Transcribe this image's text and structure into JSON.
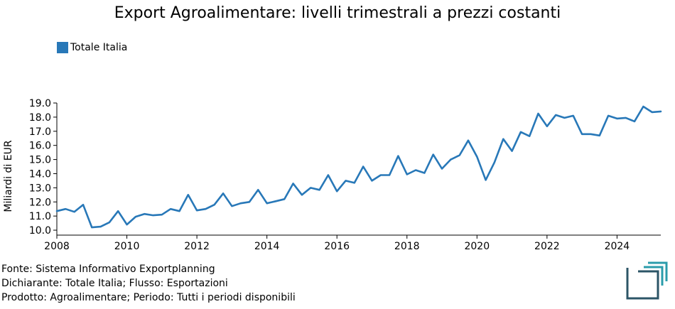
{
  "header": {
    "title": "Export Agroalimentare: livelli trimestrali a prezzi costanti"
  },
  "legend": {
    "label": "Totale Italia",
    "color": "#2878b8"
  },
  "footer": {
    "line1": "Fonte: Sistema Informativo Exportplanning",
    "line2": "Dichiarante: Totale Italia; Flusso: Esportazioni",
    "line3": "Prodotto: Agroalimentare; Periodo: Tutti i periodi disponibili"
  },
  "logo": {
    "icon": "exportplanning-logo-icon",
    "colors": [
      "#2b9cab",
      "#2c5567"
    ]
  },
  "chart_data": {
    "type": "line",
    "title": "Export Agroalimentare: livelli trimestrali a prezzi costanti",
    "xlabel": "",
    "ylabel": "Miliardi di EUR",
    "xlim": [
      2008,
      2025.25
    ],
    "ylim": [
      9.65,
      19.0
    ],
    "grid": false,
    "legend_position": "top-left",
    "x_ticks": [
      2008,
      2010,
      2012,
      2014,
      2016,
      2018,
      2020,
      2022,
      2024
    ],
    "x_tick_labels": [
      "2008",
      "2010",
      "2012",
      "2014",
      "2016",
      "2018",
      "2020",
      "2022",
      "2024"
    ],
    "y_ticks": [
      10.0,
      11.0,
      12.0,
      13.0,
      14.0,
      15.0,
      16.0,
      17.0,
      18.0,
      19.0
    ],
    "y_tick_labels": [
      "10.0",
      "11.0",
      "12.0",
      "13.0",
      "14.0",
      "15.0",
      "16.0",
      "17.0",
      "18.0",
      "19.0"
    ],
    "series": [
      {
        "name": "Totale Italia",
        "color": "#2878b8",
        "x": [
          2008.0,
          2008.25,
          2008.5,
          2008.75,
          2009.0,
          2009.25,
          2009.5,
          2009.75,
          2010.0,
          2010.25,
          2010.5,
          2010.75,
          2011.0,
          2011.25,
          2011.5,
          2011.75,
          2012.0,
          2012.25,
          2012.5,
          2012.75,
          2013.0,
          2013.25,
          2013.5,
          2013.75,
          2014.0,
          2014.25,
          2014.5,
          2014.75,
          2015.0,
          2015.25,
          2015.5,
          2015.75,
          2016.0,
          2016.25,
          2016.5,
          2016.75,
          2017.0,
          2017.25,
          2017.5,
          2017.75,
          2018.0,
          2018.25,
          2018.5,
          2018.75,
          2019.0,
          2019.25,
          2019.5,
          2019.75,
          2020.0,
          2020.25,
          2020.5,
          2020.75,
          2021.0,
          2021.25,
          2021.5,
          2021.75,
          2022.0,
          2022.25,
          2022.5,
          2022.75,
          2023.0,
          2023.25,
          2023.5,
          2023.75,
          2024.0,
          2024.25,
          2024.5,
          2024.75,
          2025.0,
          2025.25
        ],
        "values": [
          11.35,
          11.5,
          11.3,
          11.8,
          10.2,
          10.25,
          10.55,
          11.35,
          10.4,
          10.95,
          11.15,
          11.05,
          11.1,
          11.5,
          11.35,
          12.5,
          11.4,
          11.5,
          11.8,
          12.6,
          11.7,
          11.9,
          12.0,
          12.85,
          11.9,
          12.05,
          12.2,
          13.3,
          12.5,
          13.0,
          12.85,
          13.9,
          12.75,
          13.5,
          13.35,
          14.5,
          13.5,
          13.9,
          13.9,
          15.25,
          13.95,
          14.25,
          14.05,
          15.35,
          14.35,
          15.0,
          15.3,
          16.35,
          15.2,
          13.55,
          14.8,
          16.45,
          15.6,
          16.95,
          16.65,
          18.25,
          17.35,
          18.15,
          17.95,
          18.1,
          16.8,
          16.8,
          16.7,
          18.1,
          17.9,
          17.95,
          17.7,
          18.75,
          18.35,
          18.4
        ]
      }
    ]
  }
}
